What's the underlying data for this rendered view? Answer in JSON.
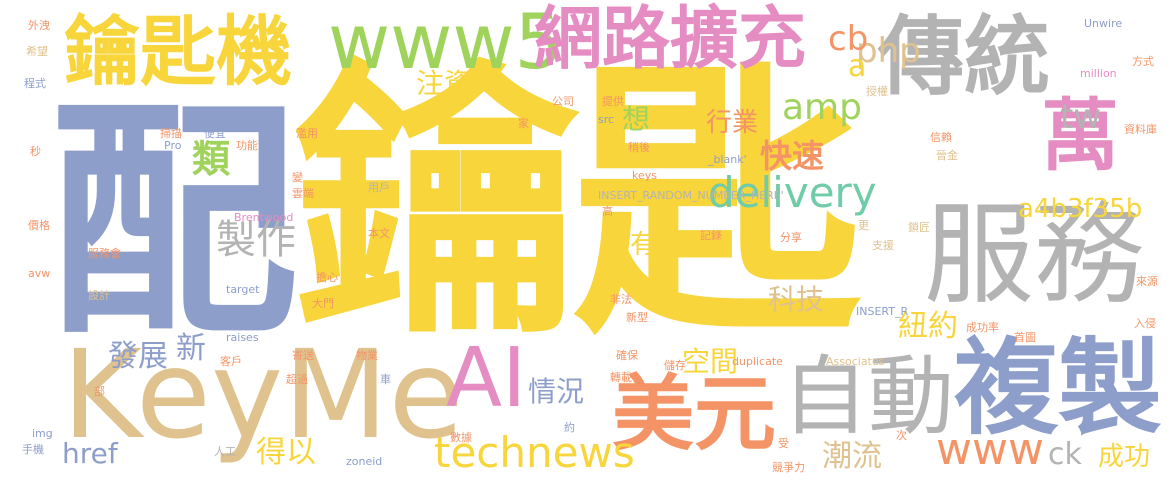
{
  "palette": {
    "yellow": "#f8d53a",
    "blue": "#8d9ecb",
    "tan": "#dfc28e",
    "gray": "#b3b3b3",
    "pink": "#e58cc3",
    "green": "#9fd35c",
    "orange": "#f49466",
    "teal": "#6fcba8"
  },
  "words": {
    "key": "鑰匙",
    "pei": "配",
    "keyme": "KeyMe",
    "yaoshiji": "鑰匙機",
    "www5": "www5",
    "wangluo": "網路擴充",
    "chuantong": "傳統",
    "fuwu": "服務",
    "fuzhi": "複製",
    "zidong": "自動",
    "meiyuan": "美元",
    "ai": "AI",
    "wan": "萬",
    "delivery": "delivery",
    "technews": "technews",
    "amp": "amp",
    "php": "php",
    "cb": "cb",
    "tw": "tw",
    "zhuzi": "注資",
    "a": "a",
    "xiang": "想",
    "lei": "類",
    "hangye": "行業",
    "kuaisu": "快速",
    "zhizuo": "製作",
    "a4b": "a4b3f35b",
    "youyi": "有意",
    "n": "n",
    "keji": "科技",
    "niuyue": "紐約",
    "kongjian": "空間",
    "fazhan": "發展",
    "xin": "新",
    "qingkuang": "情況",
    "href": "href",
    "deyi": "得以",
    "chaoliu": "潮流",
    "www": "www",
    "ck": "ck",
    "chenggong": "成功",
    "unwire": "Unwire",
    "waixie": "外洩",
    "xiwang": "希望",
    "chengshi": "程式",
    "miao": "秒",
    "jiage": "價格",
    "fuwuhui": "服務會",
    "avw": "avw",
    "sheji": "設計",
    "bu": "部",
    "shouji": "手機",
    "img": "img",
    "rengong": "人工",
    "fangshi": "方式",
    "million": "million",
    "shouquan": "授權",
    "ziliaoku": "資料庫",
    "xinlai": "信賴",
    "laiyuan": "來源",
    "rushin": "入侵",
    "shouye": "首圖",
    "chenggonglv": "成功率",
    "gongsi": "公司",
    "tigong": "提供",
    "jia": "家",
    "src": "src",
    "shaomiao": "掃描",
    "pro": "Pro",
    "bianyi": "便宜",
    "gongneng": "功能",
    "lanyong": "濫用",
    "shaohou": "稍後",
    "blank": "_blank'",
    "keys": "keys",
    "bian": "變",
    "yunduan": "雲端",
    "insert_random": "INSERT_RANDOM_NUMBER_HERE'",
    "yonghu": "用戶",
    "gao": "高",
    "brentwood": "Brentwood",
    "jincha": "晉金",
    "suojiang": "鎖匠",
    "geng": "更",
    "benwen": "本文",
    "jilu": "記錄",
    "fenxiang": "分享",
    "zhiyuan": "支援",
    "danxin": "擔心",
    "target": "target",
    "feifa": "非法",
    "damen": "大門",
    "insert_r": "INSERT_R",
    "xinxing": "新型",
    "raises": "raises",
    "kehu": "客戶",
    "jisong": "寄送",
    "wuye": "物業",
    "quebao": "確保",
    "duplicate": "duplicate",
    "associates": "Associates",
    "chuchun": "儲存",
    "chaoguo": "超過",
    "che": "車",
    "zhuanzai": "轉載",
    "shuju": "數據",
    "yue": "約",
    "shou": "受",
    "ci": "次",
    "zoneid": "zoneid",
    "jingzhengli": "競爭力"
  }
}
